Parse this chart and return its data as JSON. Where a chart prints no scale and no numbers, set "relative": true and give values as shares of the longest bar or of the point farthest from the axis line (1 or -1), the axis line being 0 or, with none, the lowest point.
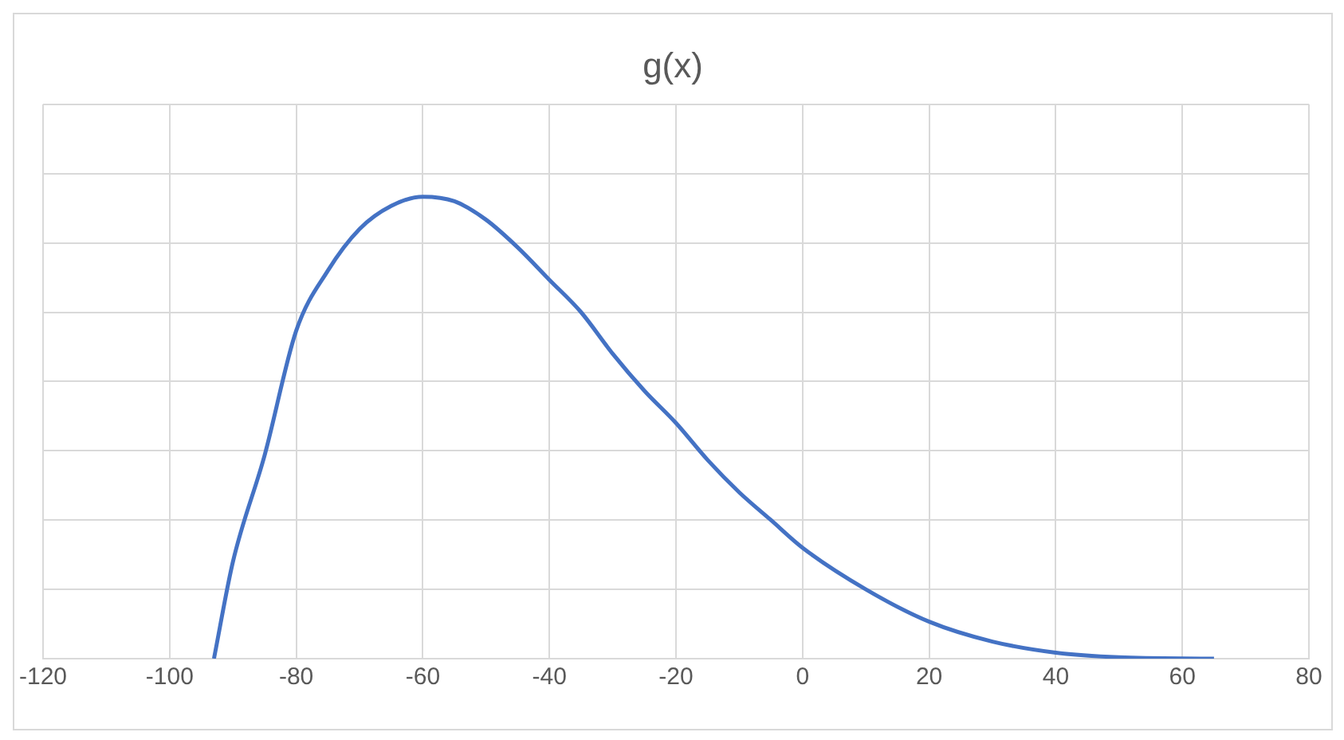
{
  "chart_data": {
    "type": "line",
    "title": "g(x)",
    "relative": true,
    "x": [
      -93,
      -90,
      -85,
      -80,
      -75,
      -70,
      -65,
      -60,
      -55,
      -50,
      -45,
      -40,
      -35,
      -30,
      -25,
      -20,
      -15,
      -10,
      -5,
      0,
      10,
      20,
      30,
      40,
      50,
      65
    ],
    "series": [
      {
        "color": "#4472c4",
        "values": [
          0,
          0.21,
          0.44,
          0.71,
          0.84,
          0.93,
          0.98,
          1,
          0.99,
          0.95,
          0.89,
          0.82,
          0.75,
          0.66,
          0.58,
          0.51,
          0.43,
          0.36,
          0.3,
          0.24,
          0.15,
          0.08,
          0.037,
          0.013,
          0.003,
          0
        ]
      }
    ],
    "xlim": [
      -120,
      80
    ],
    "xticks": [
      -120,
      -100,
      -80,
      -60,
      -40,
      -20,
      0,
      20,
      40,
      60,
      80
    ],
    "grid": true,
    "legend": false,
    "marker": "none",
    "line_style": "solid"
  }
}
